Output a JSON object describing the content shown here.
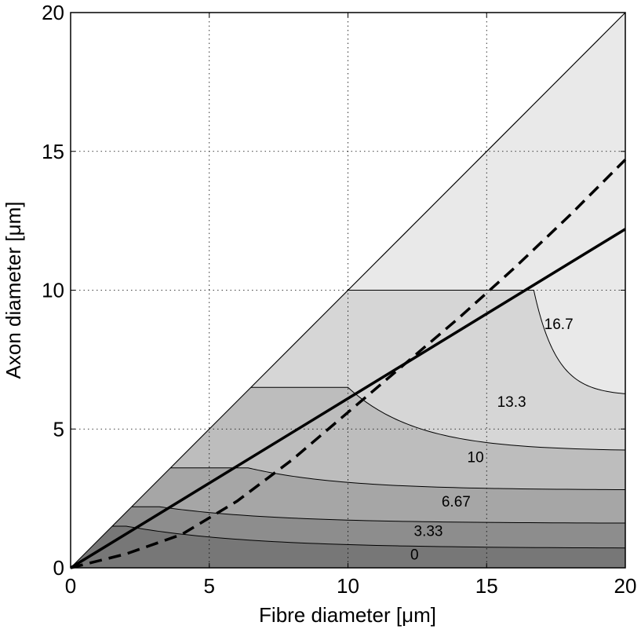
{
  "chart_data": {
    "type": "contour",
    "xlabel": "Fibre diameter [μm]",
    "ylabel": "Axon diameter [μm]",
    "xlim": [
      0,
      20
    ],
    "ylim": [
      0,
      20
    ],
    "xticks": [
      "0",
      "5",
      "10",
      "15",
      "20"
    ],
    "yticks": [
      "0",
      "5",
      "10",
      "15",
      "20"
    ],
    "grid": true,
    "contour_levels": [
      {
        "label": "0",
        "fill": "#777777"
      },
      {
        "label": "3.33",
        "fill": "#8d8d8d"
      },
      {
        "label": "6.67",
        "fill": "#a6a6a6"
      },
      {
        "label": "10",
        "fill": "#bdbdbd"
      },
      {
        "label": "13.3",
        "fill": "#d6d6d6"
      },
      {
        "label": "16.7",
        "fill": "#e9e9e9"
      }
    ],
    "contour_label_positions": [
      {
        "label": "0",
        "x": 12.4,
        "y": 0.5
      },
      {
        "label": "3.33",
        "x": 12.9,
        "y": 1.35
      },
      {
        "label": "6.67",
        "x": 13.9,
        "y": 2.4
      },
      {
        "label": "10",
        "x": 14.6,
        "y": 4.0
      },
      {
        "label": "13.3",
        "x": 15.9,
        "y": 6.0
      },
      {
        "label": "16.7",
        "x": 17.6,
        "y": 8.8
      }
    ],
    "series": [
      {
        "style": "solid",
        "x": [
          0,
          20
        ],
        "y": [
          0,
          12.2
        ]
      },
      {
        "style": "dashed",
        "x": [
          0,
          2,
          4,
          6,
          8,
          10,
          12,
          14,
          16,
          18,
          20
        ],
        "y": [
          0,
          0.5,
          1.2,
          2.4,
          3.9,
          5.6,
          7.3,
          9.0,
          10.8,
          12.7,
          14.7
        ]
      }
    ]
  }
}
